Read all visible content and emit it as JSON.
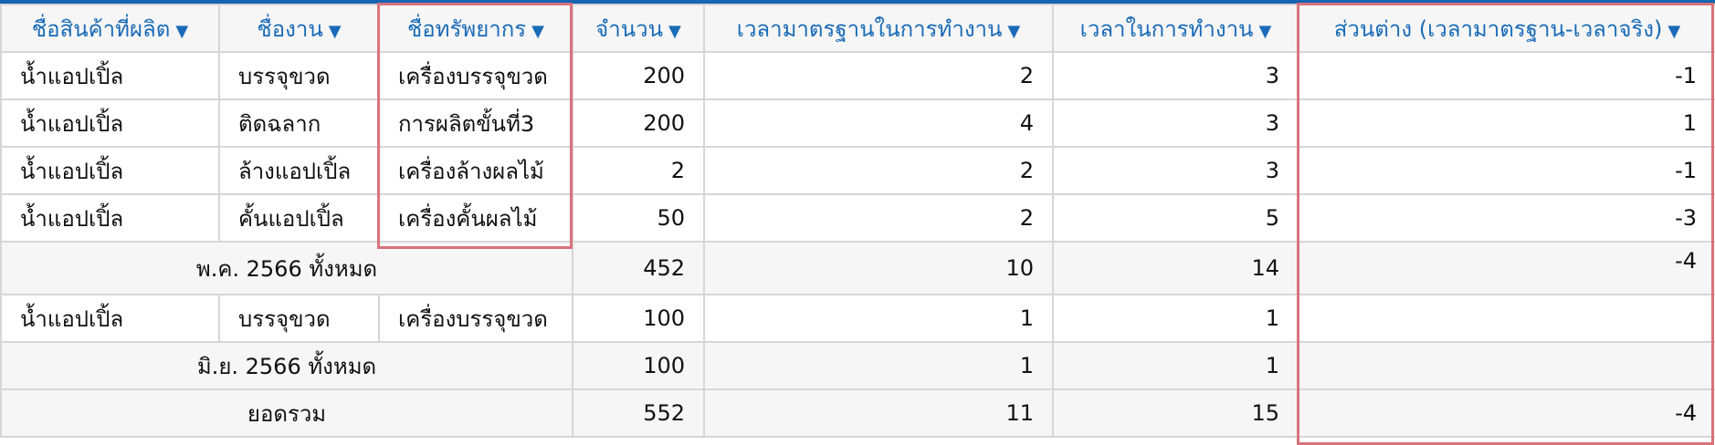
{
  "columns": [
    {
      "label": "ชื่อสินค้าที่ผลิต",
      "icon": "sort-down-icon"
    },
    {
      "label": "ชื่องาน",
      "icon": "sort-down-icon"
    },
    {
      "label": "ชื่อทรัพยากร",
      "icon": "sort-down-icon"
    },
    {
      "label": "จำนวน",
      "icon": "sort-down-icon"
    },
    {
      "label": "เวลามาตรฐานในการทำงาน",
      "icon": "sort-down-icon"
    },
    {
      "label": "เวลาในการทำงาน",
      "icon": "sort-down-icon"
    },
    {
      "label": "ส่วนต่าง (เวลามาตรฐาน-เวลาจริง)",
      "icon": "sort-down-icon"
    }
  ],
  "arrow": "▼",
  "rows": [
    {
      "product": "น้ำแอปเปิ้ล",
      "task": "บรรจุขวด",
      "resource": "เครื่องบรรจุขวด",
      "qty": "200",
      "std": "2",
      "actual": "3",
      "diff": "-1"
    },
    {
      "product": "น้ำแอปเปิ้ล",
      "task": "ติดฉลาก",
      "resource": "การผลิตขั้นที่3",
      "qty": "200",
      "std": "4",
      "actual": "3",
      "diff": "1"
    },
    {
      "product": "น้ำแอปเปิ้ล",
      "task": "ล้างแอปเปิ้ล",
      "resource": "เครื่องล้างผลไม้",
      "qty": "2",
      "std": "2",
      "actual": "3",
      "diff": "-1"
    },
    {
      "product": "น้ำแอปเปิ้ล",
      "task": "คั้นแอปเปิ้ล",
      "resource": "เครื่องคั้นผลไม้",
      "qty": "50",
      "std": "2",
      "actual": "5",
      "diff": "-3"
    }
  ],
  "subtotal_may": {
    "label": "พ.ค. 2566 ทั้งหมด",
    "qty": "452",
    "std": "10",
    "actual": "14",
    "diff": "-4"
  },
  "rows_june": [
    {
      "product": "น้ำแอปเปิ้ล",
      "task": "บรรจุขวด",
      "resource": "เครื่องบรรจุขวด",
      "qty": "100",
      "std": "1",
      "actual": "1",
      "diff": ""
    }
  ],
  "subtotal_june": {
    "label": "มิ.ย. 2566 ทั้งหมด",
    "qty": "100",
    "std": "1",
    "actual": "1",
    "diff": ""
  },
  "grand_total": {
    "label": "ยอดรวม",
    "qty": "552",
    "std": "11",
    "actual": "15",
    "diff": "-4"
  },
  "colors": {
    "header_text": "#1a6bb8",
    "accent_top": "#1565b0",
    "highlight": "#d9737c"
  }
}
